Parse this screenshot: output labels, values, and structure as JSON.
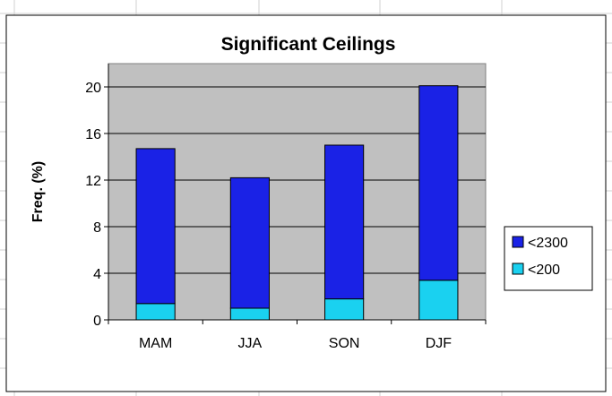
{
  "chart_data": {
    "type": "bar",
    "stacked": true,
    "title": "Significant Ceilings",
    "xlabel": "",
    "ylabel": "Freq. (%)",
    "categories": [
      "MAM",
      "JJA",
      "SON",
      "DJF"
    ],
    "ylim": [
      0,
      22
    ],
    "yticks": [
      0,
      4,
      8,
      12,
      16,
      20
    ],
    "grid": true,
    "legend_position": "right",
    "series": [
      {
        "name": "<200",
        "values": [
          1.4,
          1.0,
          1.8,
          3.4
        ],
        "color": "#1ad1f0"
      },
      {
        "name": "<2300",
        "values": [
          13.3,
          11.2,
          13.2,
          16.7
        ],
        "color": "#1a22e6"
      }
    ],
    "legend_order": [
      "<2300",
      "<200"
    ],
    "plot_background": "#c0c0c0"
  }
}
